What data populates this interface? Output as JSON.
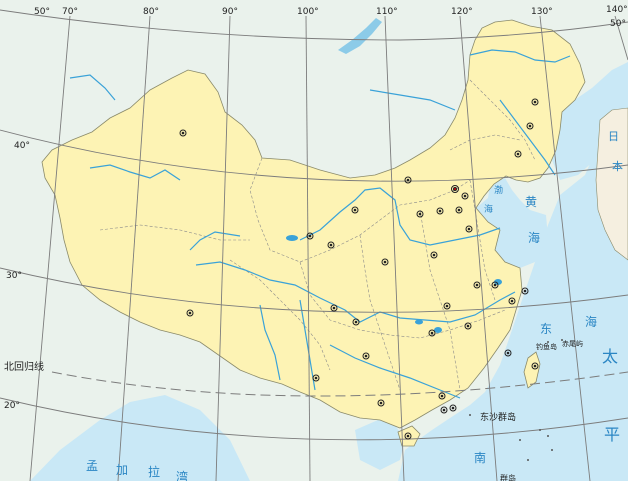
{
  "map": {
    "longitudes": [
      "50°",
      "70°",
      "80°",
      "90°",
      "100°",
      "110°",
      "120°",
      "130°",
      "140°",
      "50°"
    ],
    "latitudes": [
      "40°",
      "30°",
      "20°"
    ],
    "tropic": "北回归线",
    "seas": {
      "bohai": "渤",
      "bohai2": "海",
      "huang1": "黄",
      "huang2": "海",
      "dong1": "东",
      "dong2": "海",
      "nan": "南",
      "tai": "太",
      "ping": "平",
      "japan1": "日",
      "japan2": "本",
      "bengal1": "孟",
      "bengal2": "加",
      "bengal3": "拉",
      "bengal4": "湾"
    },
    "islands": {
      "diaoyu": "钓鱼岛",
      "chiwei": "赤尾屿",
      "dongsha": "东沙群岛",
      "xisha_partial": "群岛"
    },
    "colors": {
      "land": "#fdf3b4",
      "sea": "#c9e8f6",
      "river": "#3aa2d8",
      "grid": "#7c7c7c",
      "border": "#7a7a7a"
    }
  }
}
